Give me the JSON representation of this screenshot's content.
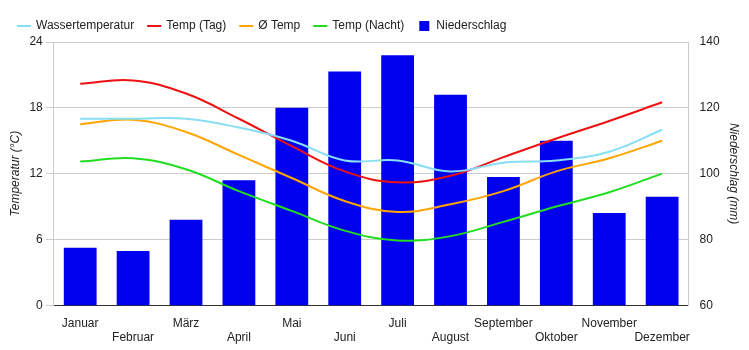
{
  "chart_data": {
    "type": "bar",
    "categories": [
      "Januar",
      "Februar",
      "März",
      "April",
      "Mai",
      "Juni",
      "Juli",
      "August",
      "September",
      "Oktober",
      "November",
      "Dezember"
    ],
    "series": [
      {
        "name": "Niederschlag",
        "type": "bar",
        "axis": "y2",
        "color": "#0000ee",
        "values": [
          77.5,
          76.5,
          86,
          98,
          120,
          131,
          136,
          124,
          99,
          110,
          88,
          93
        ]
      },
      {
        "name": "Wassertemperatur",
        "type": "line",
        "color": "#87def5",
        "values": [
          17.0,
          17.0,
          17.0,
          16.2,
          15.0,
          13.2,
          13.2,
          12.2,
          13.0,
          13.2,
          14.0,
          16.0
        ]
      },
      {
        "name": "Temp (Tag)",
        "type": "line",
        "color": "#ee1111",
        "values": [
          20.2,
          20.5,
          19.3,
          17.0,
          14.5,
          12.2,
          11.2,
          11.8,
          13.5,
          15.2,
          16.8,
          18.5
        ]
      },
      {
        "name": "Ø Temp",
        "type": "line",
        "color": "#ffa500",
        "values": [
          16.5,
          16.9,
          15.8,
          13.7,
          11.6,
          9.5,
          8.5,
          9.2,
          10.4,
          12.2,
          13.4,
          15.0
        ]
      },
      {
        "name": "Temp (Nacht)",
        "type": "line",
        "color": "#22dd22",
        "values": [
          13.1,
          13.4,
          12.4,
          10.4,
          8.6,
          6.8,
          5.9,
          6.3,
          7.6,
          9.0,
          10.3,
          12.0
        ]
      }
    ],
    "y_label": "Temperatur (°C)",
    "y2_label": "Niederschlag (mm)",
    "ylim": [
      0,
      24
    ],
    "yticks": [
      0,
      6,
      12,
      18,
      24
    ],
    "y2lim": [
      60,
      140
    ],
    "y2ticks": [
      60,
      80,
      100,
      120,
      140
    ],
    "grid": true,
    "legend": "top"
  }
}
